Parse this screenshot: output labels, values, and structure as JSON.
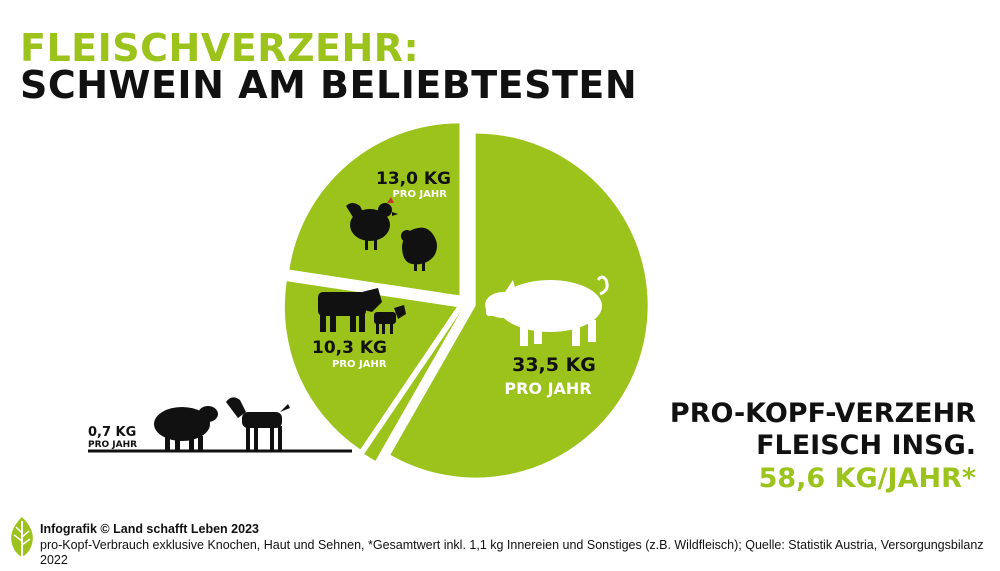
{
  "title": {
    "line1": "FLEISCHVERZEHR:",
    "line2": "SCHWEIN AM BELIEBTESTEN"
  },
  "colors": {
    "accent": "#9bc31b",
    "text": "#111111",
    "background": "#ffffff"
  },
  "chart_data": {
    "type": "pie",
    "unit": "KG PRO JAHR",
    "slices": [
      {
        "name": "Schwein",
        "value": 33.5,
        "label": "33,5 KG",
        "sublabel": "PRO JAHR",
        "icons": [
          "pig-icon"
        ]
      },
      {
        "name": "Rind und Kalb",
        "value": 10.3,
        "label": "10,3 KG",
        "sublabel": "PRO JAHR",
        "icons": [
          "cow-icon",
          "calf-icon"
        ]
      },
      {
        "name": "Geflügel",
        "value": 13.0,
        "label": "13,0 KG",
        "sublabel": "PRO JAHR",
        "icons": [
          "chicken-icon",
          "turkey-icon"
        ]
      },
      {
        "name": "Schaf und Ziege",
        "value": 0.7,
        "label": "0,7 KG",
        "sublabel": "PRO JAHR",
        "icons": [
          "sheep-icon",
          "goat-icon"
        ]
      }
    ]
  },
  "summary": {
    "line1": "PRO-KOPF-VERZEHR",
    "line2": "FLEISCH INSG.",
    "line3": "58,6 KG/JAHR*"
  },
  "footer": {
    "credit": "Infografik © Land schafft Leben 2023",
    "note": "pro-Kopf-Verbrauch exklusive Knochen, Haut und Sehnen, *Gesamtwert inkl. 1,1 kg Innereien und Sonstiges (z.B. Wildfleisch); Quelle: Statistik Austria, Versorgungsbilanz 2022"
  }
}
